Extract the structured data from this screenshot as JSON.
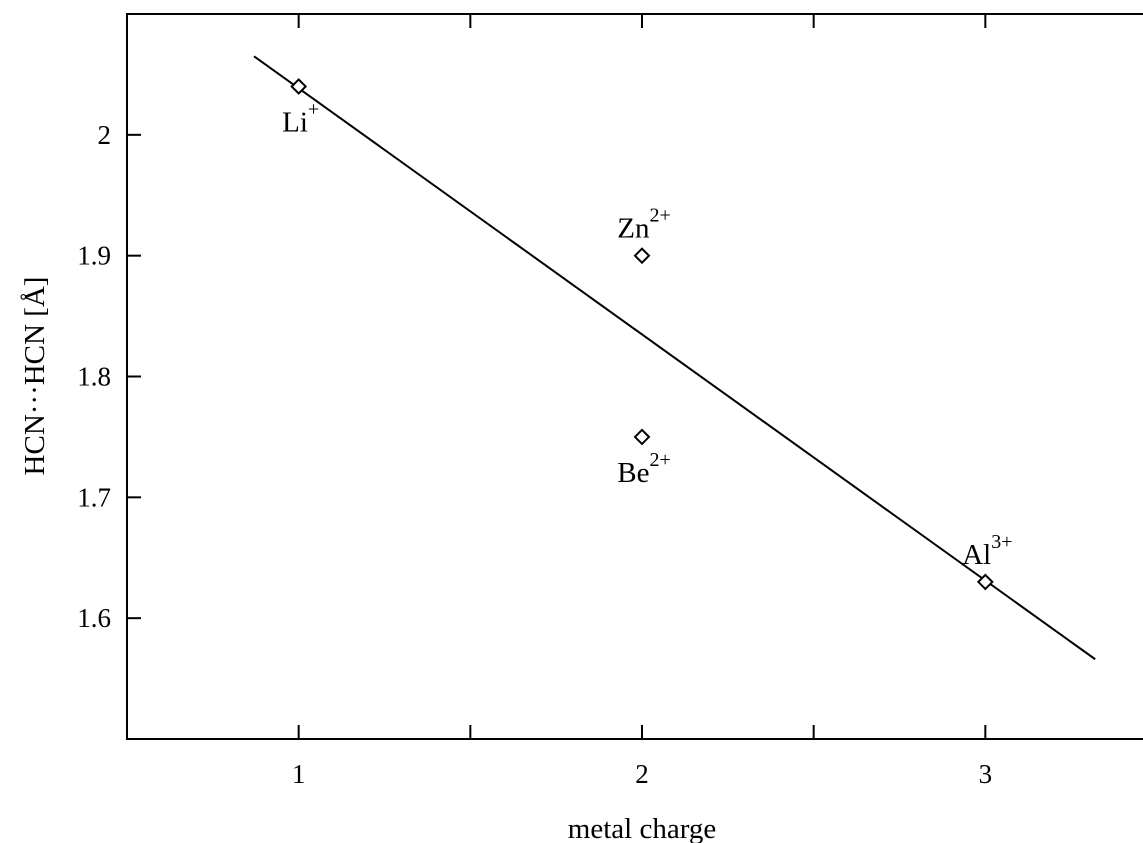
{
  "chart_data": {
    "type": "scatter",
    "title": "",
    "xlabel": "metal charge",
    "ylabel": "HCN···HCN [Å]",
    "xlim": [
      0.5,
      3.5
    ],
    "ylim": [
      1.5,
      2.1
    ],
    "xticks": [
      1,
      1.5,
      2,
      2.5,
      3
    ],
    "xtick_labels": [
      "1",
      "",
      "2",
      "",
      "3"
    ],
    "yticks": [
      1.6,
      1.7,
      1.8,
      1.9,
      2.0
    ],
    "ytick_labels": [
      "1.6",
      "1.7",
      "1.8",
      "1.9",
      "2"
    ],
    "grid": false,
    "legend": "none",
    "points": [
      {
        "label": "Li",
        "charge": "+",
        "x": 1,
        "y": 2.04,
        "label_pos": "below"
      },
      {
        "label": "Zn",
        "charge": "2+",
        "x": 2,
        "y": 1.9,
        "label_pos": "above"
      },
      {
        "label": "Be",
        "charge": "2+",
        "x": 2,
        "y": 1.75,
        "label_pos": "below"
      },
      {
        "label": "Al",
        "charge": "3+",
        "x": 3,
        "y": 1.63,
        "label_pos": "above"
      }
    ],
    "fit_line": {
      "x": [
        0.87,
        3.32
      ],
      "y": [
        2.065,
        1.566
      ]
    }
  }
}
